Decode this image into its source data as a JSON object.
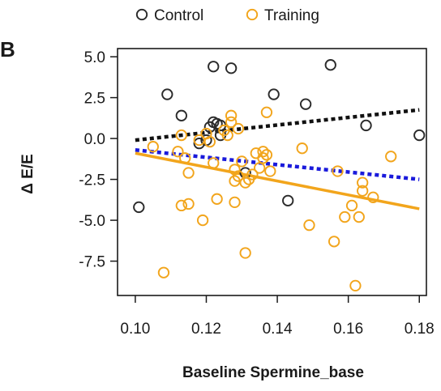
{
  "panel_label": "B",
  "chart_data": {
    "type": "scatter",
    "xlabel": "Baseline Spermine_base",
    "ylabel": "Δ E/E",
    "xlim": [
      0.095,
      0.182
    ],
    "ylim": [
      -9.6,
      5.5
    ],
    "x_ticks": [
      0.1,
      0.12,
      0.14,
      0.16,
      0.18
    ],
    "x_tick_labels": [
      "0.10",
      "0.12",
      "0.14",
      "0.16",
      "0.18"
    ],
    "y_ticks": [
      5.0,
      2.5,
      0.0,
      -2.5,
      -5.0,
      -7.5
    ],
    "y_tick_labels": [
      "5.0",
      "2.5",
      "0.0",
      "-2.5",
      "-5.0",
      "-7.5"
    ],
    "grid": false,
    "legend_position": "top",
    "series": [
      {
        "name": "Control",
        "color": "#2b2b2b",
        "marker": "open-circle",
        "points": [
          {
            "x": 0.101,
            "y": -4.2
          },
          {
            "x": 0.109,
            "y": 2.7
          },
          {
            "x": 0.113,
            "y": 1.4
          },
          {
            "x": 0.118,
            "y": -0.3
          },
          {
            "x": 0.12,
            "y": -0.1
          },
          {
            "x": 0.121,
            "y": 0.7
          },
          {
            "x": 0.122,
            "y": 4.4
          },
          {
            "x": 0.122,
            "y": 1.0
          },
          {
            "x": 0.123,
            "y": 0.9
          },
          {
            "x": 0.124,
            "y": 0.8
          },
          {
            "x": 0.124,
            "y": 0.2
          },
          {
            "x": 0.127,
            "y": 4.3
          },
          {
            "x": 0.131,
            "y": -2.1
          },
          {
            "x": 0.139,
            "y": 2.7
          },
          {
            "x": 0.143,
            "y": -3.8
          },
          {
            "x": 0.148,
            "y": 2.1
          },
          {
            "x": 0.155,
            "y": 4.5
          },
          {
            "x": 0.165,
            "y": 0.8
          },
          {
            "x": 0.18,
            "y": 0.2
          }
        ]
      },
      {
        "name": "Training",
        "color": "#f2a51c",
        "marker": "open-circle",
        "points": [
          {
            "x": 0.105,
            "y": -0.5
          },
          {
            "x": 0.108,
            "y": -8.2
          },
          {
            "x": 0.112,
            "y": -0.8
          },
          {
            "x": 0.113,
            "y": 0.2
          },
          {
            "x": 0.113,
            "y": -4.1
          },
          {
            "x": 0.114,
            "y": -1.2
          },
          {
            "x": 0.115,
            "y": -4.0
          },
          {
            "x": 0.115,
            "y": -2.1
          },
          {
            "x": 0.118,
            "y": -0.1
          },
          {
            "x": 0.119,
            "y": -5.0
          },
          {
            "x": 0.12,
            "y": 0.3
          },
          {
            "x": 0.121,
            "y": -0.2
          },
          {
            "x": 0.122,
            "y": -1.5
          },
          {
            "x": 0.123,
            "y": -3.7
          },
          {
            "x": 0.125,
            "y": 0.5
          },
          {
            "x": 0.126,
            "y": 0.2
          },
          {
            "x": 0.127,
            "y": 1.4
          },
          {
            "x": 0.127,
            "y": 1.0
          },
          {
            "x": 0.128,
            "y": -1.9
          },
          {
            "x": 0.128,
            "y": -2.6
          },
          {
            "x": 0.128,
            "y": -3.9
          },
          {
            "x": 0.129,
            "y": 0.6
          },
          {
            "x": 0.129,
            "y": -2.3
          },
          {
            "x": 0.13,
            "y": -1.4
          },
          {
            "x": 0.131,
            "y": -2.7
          },
          {
            "x": 0.131,
            "y": -7.0
          },
          {
            "x": 0.132,
            "y": -2.5
          },
          {
            "x": 0.133,
            "y": -2.2
          },
          {
            "x": 0.134,
            "y": -0.9
          },
          {
            "x": 0.135,
            "y": -1.8
          },
          {
            "x": 0.136,
            "y": -0.8
          },
          {
            "x": 0.136,
            "y": -1.2
          },
          {
            "x": 0.137,
            "y": 1.6
          },
          {
            "x": 0.137,
            "y": -1.0
          },
          {
            "x": 0.138,
            "y": -2.0
          },
          {
            "x": 0.147,
            "y": -0.6
          },
          {
            "x": 0.149,
            "y": -5.3
          },
          {
            "x": 0.156,
            "y": -6.3
          },
          {
            "x": 0.157,
            "y": -2.0
          },
          {
            "x": 0.159,
            "y": -4.8
          },
          {
            "x": 0.161,
            "y": -4.1
          },
          {
            "x": 0.162,
            "y": -9.0
          },
          {
            "x": 0.163,
            "y": -4.8
          },
          {
            "x": 0.164,
            "y": -2.7
          },
          {
            "x": 0.164,
            "y": -3.2
          },
          {
            "x": 0.167,
            "y": -3.6
          },
          {
            "x": 0.172,
            "y": -1.1
          }
        ]
      }
    ],
    "fit_lines": [
      {
        "color": "#111111",
        "style": "dotted",
        "x": [
          0.1,
          0.18
        ],
        "y": [
          -0.1,
          1.75
        ]
      },
      {
        "color": "#1a1adb",
        "style": "dotted",
        "x": [
          0.1,
          0.18
        ],
        "y": [
          -0.7,
          -2.5
        ]
      },
      {
        "color": "#f2a51c",
        "style": "solid",
        "x": [
          0.1,
          0.18
        ],
        "y": [
          -0.9,
          -4.3
        ]
      }
    ]
  }
}
